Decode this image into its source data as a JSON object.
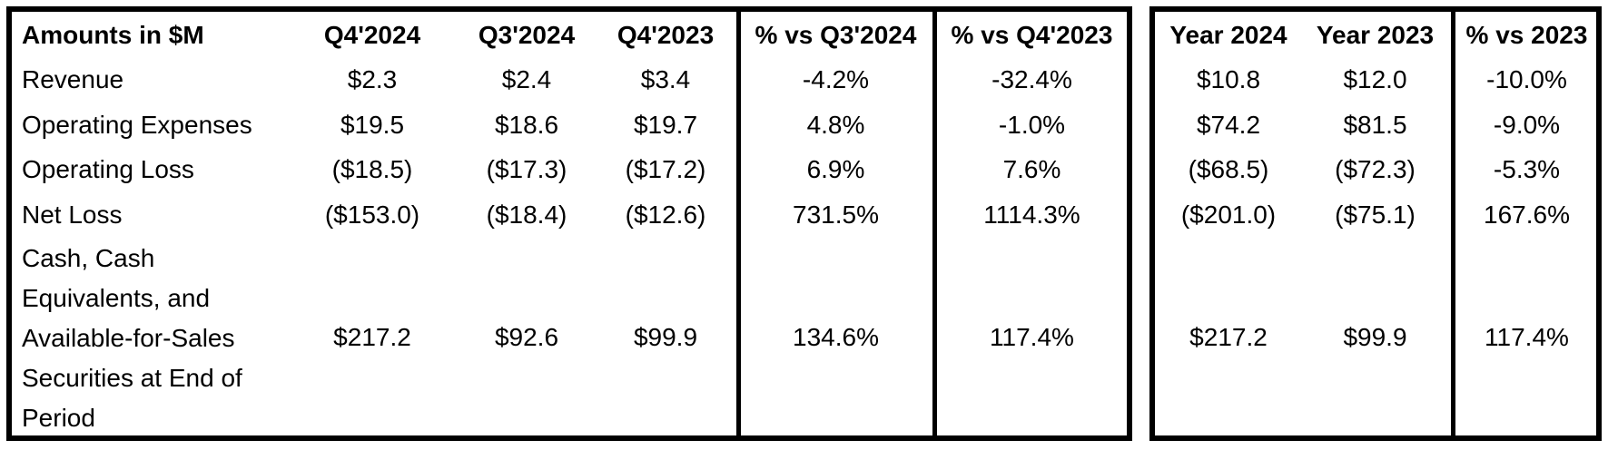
{
  "header": {
    "label": "Amounts in $M",
    "q4_2024": "Q4'2024",
    "q3_2024": "Q3'2024",
    "q4_2023": "Q4'2023",
    "pct_vs_q3": "% vs Q3'2024",
    "pct_vs_q4": "% vs Q4'2023",
    "year_2024": "Year 2024",
    "year_2023": "Year 2023",
    "pct_vs_2023": "% vs 2023"
  },
  "rows": [
    {
      "label": "Revenue",
      "q4_2024": "$2.3",
      "q3_2024": "$2.4",
      "q4_2023": "$3.4",
      "pct_vs_q3": "-4.2%",
      "pct_vs_q4": "-32.4%",
      "year_2024": "$10.8",
      "year_2023": "$12.0",
      "pct_vs_2023": "-10.0%"
    },
    {
      "label": "Operating Expenses",
      "q4_2024": "$19.5",
      "q3_2024": "$18.6",
      "q4_2023": "$19.7",
      "pct_vs_q3": "4.8%",
      "pct_vs_q4": "-1.0%",
      "year_2024": "$74.2",
      "year_2023": "$81.5",
      "pct_vs_2023": "-9.0%"
    },
    {
      "label": "Operating Loss",
      "q4_2024": "($18.5)",
      "q3_2024": "($17.3)",
      "q4_2023": "($17.2)",
      "pct_vs_q3": "6.9%",
      "pct_vs_q4": "7.6%",
      "year_2024": "($68.5)",
      "year_2023": "($72.3)",
      "pct_vs_2023": "-5.3%"
    },
    {
      "label": "Net Loss",
      "q4_2024": "($153.0)",
      "q3_2024": "($18.4)",
      "q4_2023": "($12.6)",
      "pct_vs_q3": "731.5%",
      "pct_vs_q4": "1114.3%",
      "year_2024": "($201.0)",
      "year_2023": "($75.1)",
      "pct_vs_2023": "167.6%"
    },
    {
      "label_lines": [
        "Cash, Cash",
        "Equivalents, and",
        "Available-for-Sales",
        "Securities at End of",
        "Period"
      ],
      "q4_2024": "$217.2",
      "q3_2024": "$92.6",
      "q4_2023": "$99.9",
      "pct_vs_q3": "134.6%",
      "pct_vs_q4": "117.4%",
      "year_2024": "$217.2",
      "year_2023": "$99.9",
      "pct_vs_2023": "117.4%"
    }
  ]
}
